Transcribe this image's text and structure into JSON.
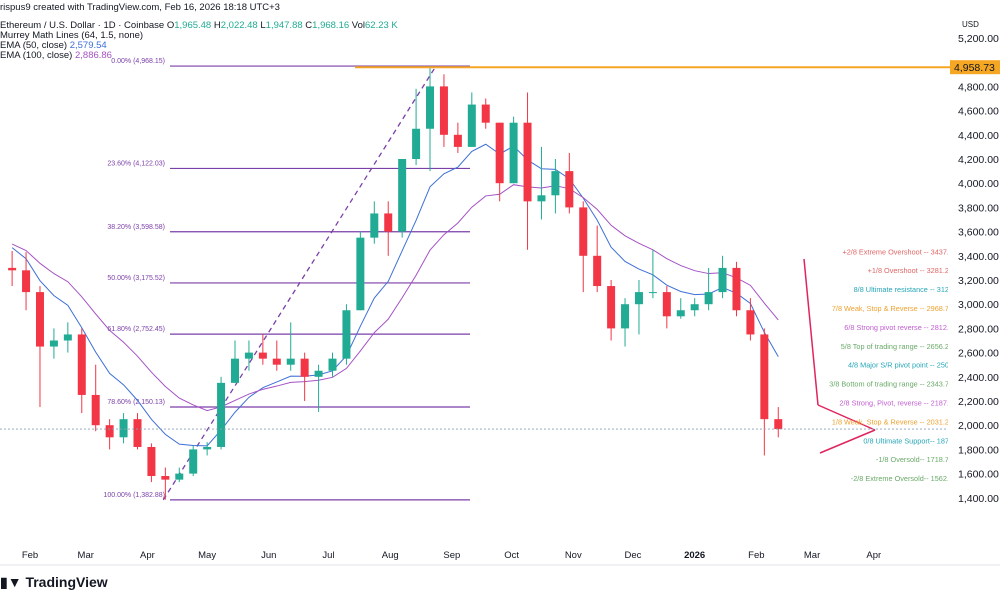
{
  "attribution": "rispus9 created with TradingView.com, Feb 16, 2026 18:18 UTC+3",
  "legend": {
    "symbol": "Ethereum / U.S. Dollar · 1D · Coinbase",
    "o_label": "O",
    "o": "1,965.48",
    "h_label": "H",
    "h": "2,022.48",
    "l_label": "L",
    "l": "1,947.88",
    "c_label": "C",
    "c": "1,968.16",
    "vol_label": "Vol",
    "vol": "62.23 K",
    "murrey": "Murrey Math Lines (64, 1.5, none)",
    "ema50_label": "EMA (50, close)",
    "ema50": "2,579.54",
    "ema100_label": "EMA (100, close)",
    "ema100": "2,886.86"
  },
  "logo": "TradingView",
  "chart_data": {
    "type": "candlestick",
    "currency": "USD",
    "ylim": [
      1200,
      5300
    ],
    "y_ticks": [
      "5,200.00",
      "4,800.00",
      "4,600.00",
      "4,400.00",
      "4,200.00",
      "4,000.00",
      "3,800.00",
      "3,600.00",
      "3,400.00",
      "3,200.00",
      "3,000.00",
      "2,800.00",
      "2,600.00",
      "2,400.00",
      "2,200.00",
      "2,000.00",
      "1,800.00",
      "1,600.00",
      "1,400.00"
    ],
    "y_tick_values": [
      5200,
      4800,
      4600,
      4400,
      4200,
      4000,
      3800,
      3600,
      3400,
      3200,
      3000,
      2800,
      2600,
      2400,
      2200,
      2000,
      1800,
      1600,
      1400
    ],
    "x_ticks": [
      {
        "label": "Feb",
        "date": "2025-02-01"
      },
      {
        "label": "Mar",
        "date": "2025-03-01"
      },
      {
        "label": "Apr",
        "date": "2025-04-01"
      },
      {
        "label": "May",
        "date": "2025-05-01"
      },
      {
        "label": "Jun",
        "date": "2025-06-01"
      },
      {
        "label": "Jul",
        "date": "2025-07-01"
      },
      {
        "label": "Aug",
        "date": "2025-08-01"
      },
      {
        "label": "Sep",
        "date": "2025-09-01"
      },
      {
        "label": "Oct",
        "date": "2025-10-01"
      },
      {
        "label": "Nov",
        "date": "2025-11-01"
      },
      {
        "label": "Dec",
        "date": "2025-12-01"
      },
      {
        "label": "2026",
        "date": "2026-01-01",
        "bold": true
      },
      {
        "label": "Feb",
        "date": "2026-02-01"
      },
      {
        "label": "Mar",
        "date": "2026-03-01"
      },
      {
        "label": "Apr",
        "date": "2026-04-01"
      }
    ],
    "price_marker": {
      "label": "4,958.73",
      "value": 4958.73,
      "color": "#f5a623"
    },
    "last_price": 1968.16,
    "colors": {
      "up": "#22ab94",
      "down": "#f23645",
      "ema50": "#3d6fd6",
      "ema100": "#a552c4",
      "fib": "#7b3fa8",
      "trend": "#e0245e"
    },
    "candles": [
      [
        "2025-01-20",
        3300,
        3440,
        3150,
        3280
      ],
      [
        "2025-01-27",
        3280,
        3430,
        2950,
        3100
      ],
      [
        "2025-02-03",
        3100,
        3150,
        2150,
        2650
      ],
      [
        "2025-02-10",
        2650,
        2800,
        2550,
        2700
      ],
      [
        "2025-02-17",
        2700,
        2850,
        2600,
        2750
      ],
      [
        "2025-02-24",
        2750,
        2800,
        2100,
        2250
      ],
      [
        "2025-03-03",
        2250,
        2500,
        1950,
        2000
      ],
      [
        "2025-03-10",
        2000,
        2050,
        1800,
        1900
      ],
      [
        "2025-03-17",
        1900,
        2100,
        1850,
        2050
      ],
      [
        "2025-03-24",
        2050,
        2100,
        1800,
        1820
      ],
      [
        "2025-03-31",
        1820,
        1850,
        1530,
        1580
      ],
      [
        "2025-04-07",
        1580,
        1650,
        1385,
        1550
      ],
      [
        "2025-04-14",
        1550,
        1650,
        1530,
        1600
      ],
      [
        "2025-04-21",
        1600,
        1830,
        1580,
        1800
      ],
      [
        "2025-04-28",
        1800,
        1860,
        1750,
        1820
      ],
      [
        "2025-05-05",
        1820,
        2400,
        1800,
        2350
      ],
      [
        "2025-05-12",
        2350,
        2700,
        2350,
        2550
      ],
      [
        "2025-05-19",
        2550,
        2700,
        2450,
        2600
      ],
      [
        "2025-05-26",
        2600,
        2750,
        2500,
        2550
      ],
      [
        "2025-06-02",
        2550,
        2700,
        2450,
        2500
      ],
      [
        "2025-06-09",
        2500,
        2850,
        2450,
        2550
      ],
      [
        "2025-06-16",
        2550,
        2600,
        2200,
        2400
      ],
      [
        "2025-06-23",
        2400,
        2500,
        2110,
        2450
      ],
      [
        "2025-06-30",
        2450,
        2600,
        2400,
        2550
      ],
      [
        "2025-07-07",
        2550,
        3000,
        2500,
        2950
      ],
      [
        "2025-07-14",
        2950,
        3600,
        2950,
        3550
      ],
      [
        "2025-07-21",
        3550,
        3850,
        3500,
        3750
      ],
      [
        "2025-07-28",
        3750,
        3850,
        3400,
        3600
      ],
      [
        "2025-08-04",
        3600,
        4200,
        3550,
        4200
      ],
      [
        "2025-08-11",
        4200,
        4780,
        4150,
        4450
      ],
      [
        "2025-08-18",
        4450,
        4968,
        4100,
        4800
      ],
      [
        "2025-08-25",
        4800,
        4900,
        4300,
        4400
      ],
      [
        "2025-09-01",
        4400,
        4500,
        4250,
        4300
      ],
      [
        "2025-09-08",
        4300,
        4750,
        4300,
        4650
      ],
      [
        "2025-09-15",
        4650,
        4700,
        4450,
        4500
      ],
      [
        "2025-09-22",
        4500,
        4500,
        3850,
        4000
      ],
      [
        "2025-09-29",
        4000,
        4550,
        4000,
        4500
      ],
      [
        "2025-10-06",
        4500,
        4750,
        3450,
        3850
      ],
      [
        "2025-10-13",
        3850,
        4300,
        3700,
        3900
      ],
      [
        "2025-10-20",
        3900,
        4200,
        3750,
        4100
      ],
      [
        "2025-10-27",
        4100,
        4250,
        3750,
        3800
      ],
      [
        "2025-11-03",
        3800,
        3850,
        3100,
        3400
      ],
      [
        "2025-11-10",
        3400,
        3650,
        3100,
        3150
      ],
      [
        "2025-11-17",
        3150,
        3200,
        2700,
        2800
      ],
      [
        "2025-11-24",
        2800,
        3050,
        2650,
        3000
      ],
      [
        "2025-12-01",
        3000,
        3200,
        2750,
        3100
      ],
      [
        "2025-12-08",
        3100,
        3450,
        3050,
        3100
      ],
      [
        "2025-12-15",
        3100,
        3150,
        2800,
        2900
      ],
      [
        "2025-12-22",
        2900,
        3050,
        2880,
        2950
      ],
      [
        "2025-12-29",
        2950,
        3050,
        2900,
        3000
      ],
      [
        "2026-01-05",
        3000,
        3300,
        2950,
        3100
      ],
      [
        "2026-01-12",
        3100,
        3400,
        3050,
        3300
      ],
      [
        "2026-01-19",
        3300,
        3350,
        2900,
        2950
      ],
      [
        "2026-01-26",
        2950,
        3050,
        2700,
        2750
      ],
      [
        "2026-02-02",
        2750,
        2800,
        1750,
        2050
      ],
      [
        "2026-02-09",
        2050,
        2150,
        1900,
        1968
      ]
    ],
    "fib": {
      "from": {
        "date": "2025-04-09",
        "price": 1382.88
      },
      "to": {
        "date": "2025-08-24",
        "price": 4968.15
      },
      "levels": [
        {
          "label": "0.00% (4,968.15)",
          "value": 4968.15
        },
        {
          "label": "23.60% (4,122.03)",
          "value": 4122.03
        },
        {
          "label": "38.20% (3,598.58)",
          "value": 3598.58
        },
        {
          "label": "50.00% (3,175.52)",
          "value": 3175.52
        },
        {
          "label": "61.80% (2,752.45)",
          "value": 2752.45
        },
        {
          "label": "78.60% (2,150.13)",
          "value": 2150.13
        },
        {
          "label": "100.00% (1,382.88)",
          "value": 1382.88
        }
      ]
    },
    "murrey_levels": [
      {
        "label": "+2/8 Extreme Overshoot --  3437.5",
        "value": 3437.5,
        "color": "#e06666"
      },
      {
        "label": "+1/8 Overshoot --  3281.25",
        "value": 3281.25,
        "color": "#e06666"
      },
      {
        "label": "8/8 Ultimate resistance --  3125",
        "value": 3125,
        "color": "#26a6b8"
      },
      {
        "label": "7/8 Weak, Stop & Reverse --  2968.75",
        "value": 2968.75,
        "color": "#eea230"
      },
      {
        "label": "6/8 Strong pivot reverse --  2812.5",
        "value": 2812.5,
        "color": "#c05ed0"
      },
      {
        "label": "5/8 Top of trading range --  2656.25",
        "value": 2656.25,
        "color": "#6aaa6a"
      },
      {
        "label": "4/8 Major S/R pivot point --  2500",
        "value": 2500,
        "color": "#26a6b8"
      },
      {
        "label": "3/8 Bottom of trading range --  2343.75",
        "value": 2343.75,
        "color": "#6aaa6a"
      },
      {
        "label": "2/8 Strong, Pivot, reverse --  2187.5",
        "value": 2187.5,
        "color": "#c05ed0"
      },
      {
        "label": "1/8 Weak, Stop & Reverse --  2031.25",
        "value": 2031.25,
        "color": "#eea230"
      },
      {
        "label": "0/8 Ultimate Support--  1875",
        "value": 1875,
        "color": "#26a6b8"
      },
      {
        "label": "-1/8 Oversold--  1718.75",
        "value": 1718.75,
        "color": "#6aaa6a"
      },
      {
        "label": "-2/8 Extreme Oversold--  1562.5",
        "value": 1562.5,
        "color": "#6aaa6a"
      }
    ]
  }
}
